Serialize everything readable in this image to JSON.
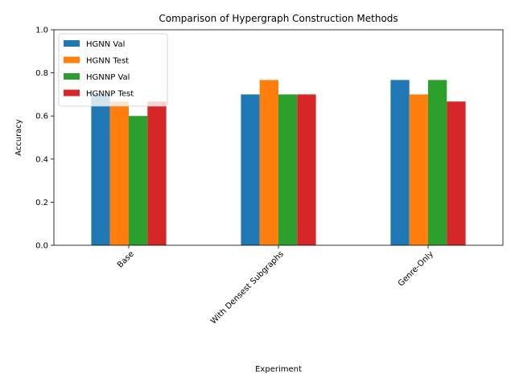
{
  "chart_data": {
    "type": "bar",
    "title": "Comparison of Hypergraph Construction Methods",
    "xlabel": "Experiment",
    "ylabel": "Accuracy",
    "ylim": [
      0,
      1.0
    ],
    "yticks": [
      "0.0",
      "0.2",
      "0.4",
      "0.6",
      "0.8",
      "1.0"
    ],
    "categories": [
      "Base",
      "With Densest Subgraphs",
      "Genre-Only"
    ],
    "series": [
      {
        "name": "HGNN Val",
        "color": "#1f77b4",
        "values": [
          0.7,
          0.7,
          0.767
        ]
      },
      {
        "name": "HGNN Test",
        "color": "#ff7f0e",
        "values": [
          0.667,
          0.767,
          0.7
        ]
      },
      {
        "name": "HGNNP Val",
        "color": "#2ca02c",
        "values": [
          0.6,
          0.7,
          0.767
        ]
      },
      {
        "name": "HGNNP Test",
        "color": "#d62728",
        "values": [
          0.667,
          0.7,
          0.667
        ]
      }
    ],
    "legend_position": "upper-left",
    "grid": false
  }
}
